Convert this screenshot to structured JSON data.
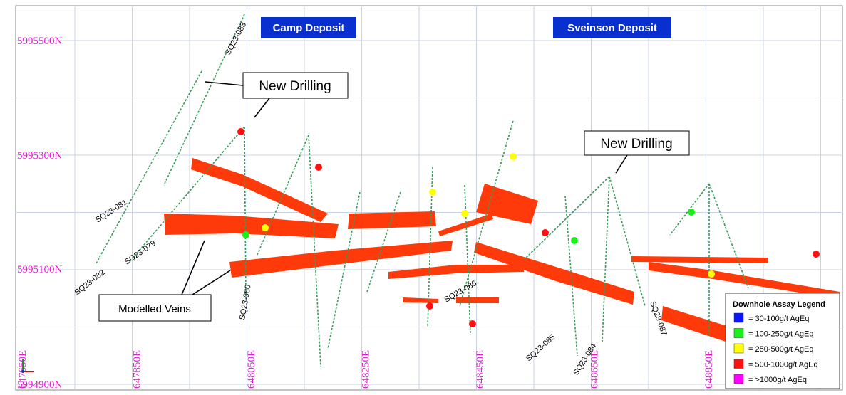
{
  "header": {
    "deposits": [
      "Camp Deposit",
      "Sveinson Deposit"
    ]
  },
  "grid": {
    "northings": [
      "5995500N",
      "5995300N",
      "5995100N",
      "5994900N"
    ],
    "eastings": [
      "647650E",
      "647850E",
      "648050E",
      "648250E",
      "648450E",
      "648650E",
      "648850E"
    ]
  },
  "holes": [
    "SQ23-083",
    "SQ23-081",
    "SQ23-079",
    "SQ23-082",
    "SQ23-080",
    "SQ23-086",
    "SQ23-085",
    "SQ23-084",
    "SQ23-087"
  ],
  "callouts": [
    "New Drilling",
    "New Drilling",
    "Modelled Veins"
  ],
  "legend": {
    "title": "Downhole Assay Legend",
    "items": [
      {
        "label": "= 30-100g/t AgEq",
        "color": "#0a14ff"
      },
      {
        "label": "= 100-250g/t AgEq",
        "color": "#1cf01c"
      },
      {
        "label": "= 250-500g/t AgEq",
        "color": "#ffff00"
      },
      {
        "label": "= 500-1000g/t AgEq",
        "color": "#ff1010"
      },
      {
        "label": "= >1000g/t AgEq",
        "color": "#ff00ff"
      }
    ]
  }
}
